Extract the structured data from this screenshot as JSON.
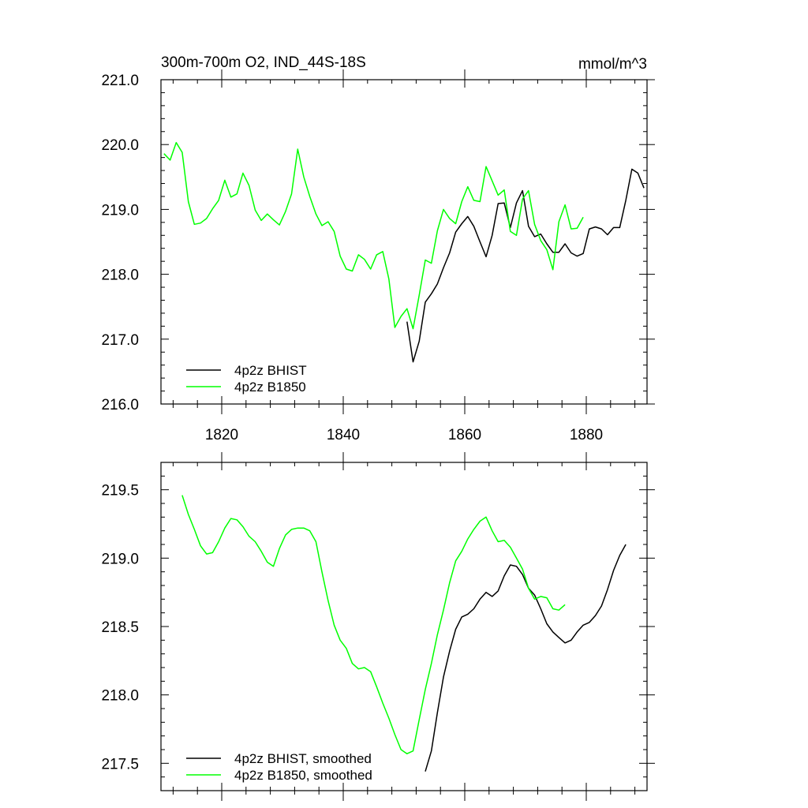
{
  "chart_data": [
    {
      "type": "line",
      "title": "300m-700m O2, IND_44S-18S",
      "units": "mmol/m^3",
      "xlim": [
        1810,
        1890
      ],
      "ylim": [
        216.0,
        221.0
      ],
      "xticks": [
        1820,
        1840,
        1860,
        1880
      ],
      "xtick_labels": [
        "1820",
        "1840",
        "1860",
        "1880"
      ],
      "yticks": [
        216.0,
        217.0,
        218.0,
        219.0,
        220.0,
        221.0
      ],
      "ytick_labels": [
        "216.0",
        "217.0",
        "218.0",
        "219.0",
        "220.0",
        "221.0"
      ],
      "legend_position": "bottom-left",
      "grid": false,
      "series": [
        {
          "name": "4p2z BHIST",
          "color": "#000000",
          "x": [
            1850.5,
            1851.5,
            1852.5,
            1853.5,
            1854.5,
            1855.5,
            1856.5,
            1857.5,
            1858.5,
            1859.5,
            1860.5,
            1861.5,
            1862.5,
            1863.5,
            1864.5,
            1865.5,
            1866.5,
            1867.5,
            1868.5,
            1869.5,
            1870.5,
            1871.5,
            1872.5,
            1873.5,
            1874.5,
            1875.5,
            1876.5,
            1877.5,
            1878.5,
            1879.5,
            1880.5,
            1881.5,
            1882.5,
            1883.5,
            1884.5,
            1885.5,
            1886.5,
            1887.5,
            1888.5,
            1889.5
          ],
          "y": [
            217.27,
            216.65,
            216.97,
            217.57,
            217.7,
            217.85,
            218.1,
            218.33,
            218.65,
            218.78,
            218.89,
            218.74,
            218.5,
            218.27,
            218.6,
            219.09,
            219.1,
            218.72,
            219.1,
            219.29,
            218.74,
            218.58,
            218.62,
            218.47,
            218.34,
            218.34,
            218.47,
            218.33,
            218.28,
            218.32,
            218.7,
            218.73,
            218.7,
            218.61,
            218.72,
            218.72,
            219.14,
            219.62,
            219.56,
            219.33
          ]
        },
        {
          "name": "4p2z B1850",
          "color": "#00ff00",
          "x": [
            1810.5,
            1811.5,
            1812.5,
            1813.5,
            1814.5,
            1815.5,
            1816.5,
            1817.5,
            1818.5,
            1819.5,
            1820.5,
            1821.5,
            1822.5,
            1823.5,
            1824.5,
            1825.5,
            1826.5,
            1827.5,
            1828.5,
            1829.5,
            1830.5,
            1831.5,
            1832.5,
            1833.5,
            1834.5,
            1835.5,
            1836.5,
            1837.5,
            1838.5,
            1839.5,
            1840.5,
            1841.5,
            1842.5,
            1843.5,
            1844.5,
            1845.5,
            1846.5,
            1847.5,
            1848.5,
            1849.5,
            1850.5,
            1851.5,
            1852.5,
            1853.5,
            1854.5,
            1855.5,
            1856.5,
            1857.5,
            1858.5,
            1859.5,
            1860.5,
            1861.5,
            1862.5,
            1863.5,
            1864.5,
            1865.5,
            1866.5,
            1867.5,
            1868.5,
            1869.5,
            1870.5,
            1871.5,
            1872.5,
            1873.5,
            1874.5,
            1875.5,
            1876.5,
            1877.5,
            1878.5,
            1879.5
          ],
          "y": [
            219.86,
            219.76,
            220.03,
            219.88,
            219.12,
            218.77,
            218.79,
            218.86,
            219.01,
            219.14,
            219.45,
            219.19,
            219.24,
            219.56,
            219.37,
            218.99,
            218.83,
            218.93,
            218.84,
            218.76,
            218.97,
            219.24,
            219.93,
            219.5,
            219.2,
            218.93,
            218.75,
            218.81,
            218.66,
            218.28,
            218.08,
            218.05,
            218.3,
            218.23,
            218.08,
            218.3,
            218.35,
            217.93,
            217.18,
            217.35,
            217.47,
            217.16,
            217.68,
            218.22,
            218.17,
            218.67,
            219.0,
            218.86,
            218.78,
            219.12,
            219.35,
            219.14,
            219.12,
            219.66,
            219.44,
            219.22,
            219.3,
            218.66,
            218.6,
            219.16,
            219.29,
            218.77,
            218.52,
            218.38,
            218.07,
            218.81,
            219.07,
            218.7,
            218.71,
            218.88
          ]
        }
      ]
    },
    {
      "type": "line",
      "title": "",
      "xlim": [
        1810,
        1890
      ],
      "ylim": [
        217.3,
        219.7
      ],
      "xticks": [
        1820,
        1840,
        1860,
        1880
      ],
      "yticks": [
        217.5,
        218.0,
        218.5,
        219.0,
        219.5
      ],
      "ytick_labels": [
        "217.5",
        "218.0",
        "218.5",
        "219.0",
        "219.5"
      ],
      "legend_position": "bottom-left",
      "grid": false,
      "series": [
        {
          "name": "4p2z BHIST, smoothed",
          "color": "#000000",
          "x": [
            1853.5,
            1854.5,
            1855.5,
            1856.5,
            1857.5,
            1858.5,
            1859.5,
            1860.5,
            1861.5,
            1862.5,
            1863.5,
            1864.5,
            1865.5,
            1866.5,
            1867.5,
            1868.5,
            1869.5,
            1870.5,
            1871.5,
            1872.5,
            1873.5,
            1874.5,
            1875.5,
            1876.5,
            1877.5,
            1878.5,
            1879.5,
            1880.5,
            1881.5,
            1882.5,
            1883.5,
            1884.5,
            1885.5,
            1886.5
          ],
          "y": [
            217.44,
            217.59,
            217.87,
            218.13,
            218.32,
            218.48,
            218.57,
            218.59,
            218.63,
            218.7,
            218.75,
            218.72,
            218.76,
            218.87,
            218.95,
            218.94,
            218.88,
            218.78,
            218.73,
            218.63,
            218.52,
            218.46,
            218.42,
            218.38,
            218.4,
            218.46,
            218.51,
            218.53,
            218.58,
            218.65,
            218.77,
            218.91,
            219.02,
            219.1
          ]
        },
        {
          "name": "4p2z B1850, smoothed",
          "color": "#00ff00",
          "x": [
            1813.5,
            1814.5,
            1815.5,
            1816.5,
            1817.5,
            1818.5,
            1819.5,
            1820.5,
            1821.5,
            1822.5,
            1823.5,
            1824.5,
            1825.5,
            1826.5,
            1827.5,
            1828.5,
            1829.5,
            1830.5,
            1831.5,
            1832.5,
            1833.5,
            1834.5,
            1835.5,
            1836.5,
            1837.5,
            1838.5,
            1839.5,
            1840.5,
            1841.5,
            1842.5,
            1843.5,
            1844.5,
            1845.5,
            1846.5,
            1847.5,
            1848.5,
            1849.5,
            1850.5,
            1851.5,
            1852.5,
            1853.5,
            1854.5,
            1855.5,
            1856.5,
            1857.5,
            1858.5,
            1859.5,
            1860.5,
            1861.5,
            1862.5,
            1863.5,
            1864.5,
            1865.5,
            1866.5,
            1867.5,
            1868.5,
            1869.5,
            1870.5,
            1871.5,
            1872.5,
            1873.5,
            1874.5,
            1875.5,
            1876.5
          ],
          "y": [
            219.46,
            219.32,
            219.21,
            219.09,
            219.03,
            219.04,
            219.12,
            219.22,
            219.29,
            219.28,
            219.23,
            219.16,
            219.12,
            219.05,
            218.97,
            218.94,
            219.07,
            219.17,
            219.21,
            219.22,
            219.22,
            219.2,
            219.12,
            218.9,
            218.69,
            218.51,
            218.4,
            218.34,
            218.23,
            218.19,
            218.2,
            218.17,
            218.06,
            217.94,
            217.83,
            217.71,
            217.6,
            217.57,
            217.59,
            217.82,
            218.04,
            218.23,
            218.44,
            218.62,
            218.82,
            218.98,
            219.05,
            219.14,
            219.21,
            219.27,
            219.3,
            219.2,
            219.12,
            219.13,
            219.08,
            219.0,
            218.92,
            218.78,
            218.7,
            218.72,
            218.71,
            218.63,
            218.62,
            218.66
          ]
        }
      ]
    }
  ]
}
